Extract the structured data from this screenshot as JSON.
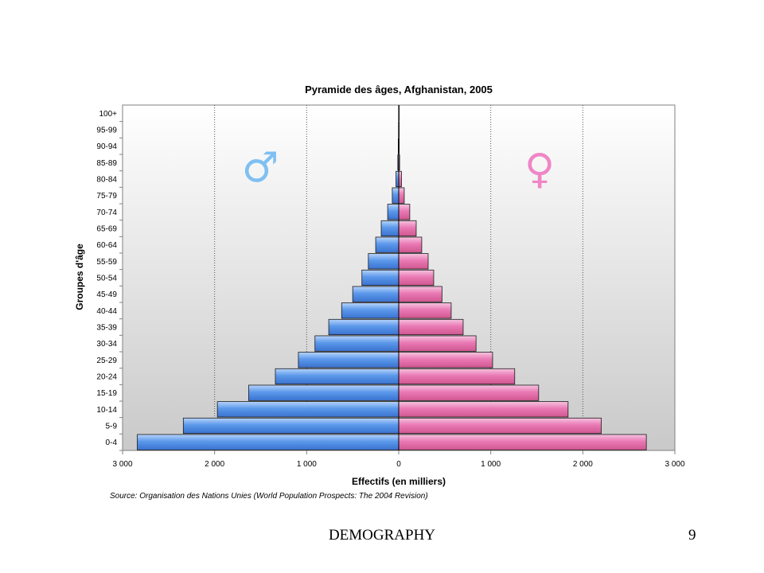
{
  "chart_data": {
    "type": "bar",
    "title": "Pyramide des âges, Afghanistan, 2005",
    "xlabel": "Effectifs (en milliers)",
    "ylabel": "Groupes d'âge",
    "xlim": [
      -3000,
      3000
    ],
    "x_ticks": [
      -3000,
      -2000,
      -1000,
      0,
      1000,
      2000,
      3000
    ],
    "x_tick_labels": [
      "3 000",
      "2 000",
      "1 000",
      "0",
      "1 000",
      "2 000",
      "3 000"
    ],
    "categories": [
      "0-4",
      "5-9",
      "10-14",
      "15-19",
      "20-24",
      "25-29",
      "30-34",
      "35-39",
      "40-44",
      "45-49",
      "50-54",
      "55-59",
      "60-64",
      "65-69",
      "70-74",
      "75-79",
      "80-84",
      "85-89",
      "90-94",
      "95-99",
      "100+"
    ],
    "series": [
      {
        "name": "♂",
        "color": "#4f8fe6",
        "values": [
          2840,
          2340,
          1970,
          1630,
          1340,
          1090,
          910,
          760,
          620,
          500,
          400,
          330,
          250,
          190,
          120,
          70,
          30,
          10,
          5,
          2,
          1
        ]
      },
      {
        "name": "♀",
        "color": "#e66aa8",
        "values": [
          2690,
          2200,
          1840,
          1520,
          1260,
          1020,
          840,
          700,
          570,
          470,
          380,
          320,
          250,
          190,
          120,
          60,
          30,
          10,
          5,
          2,
          1
        ]
      }
    ],
    "grid": "vertical dotted at ±1000, ±2000",
    "source": "Source: Organisation des Nations Unies (World Population Prospects: The 2004 Revision)"
  },
  "male_symbol_color": "#7fc0f2",
  "female_symbol_color": "#ef86c6",
  "footer": {
    "label": "DEMOGRAPHY",
    "page_number": "9"
  }
}
